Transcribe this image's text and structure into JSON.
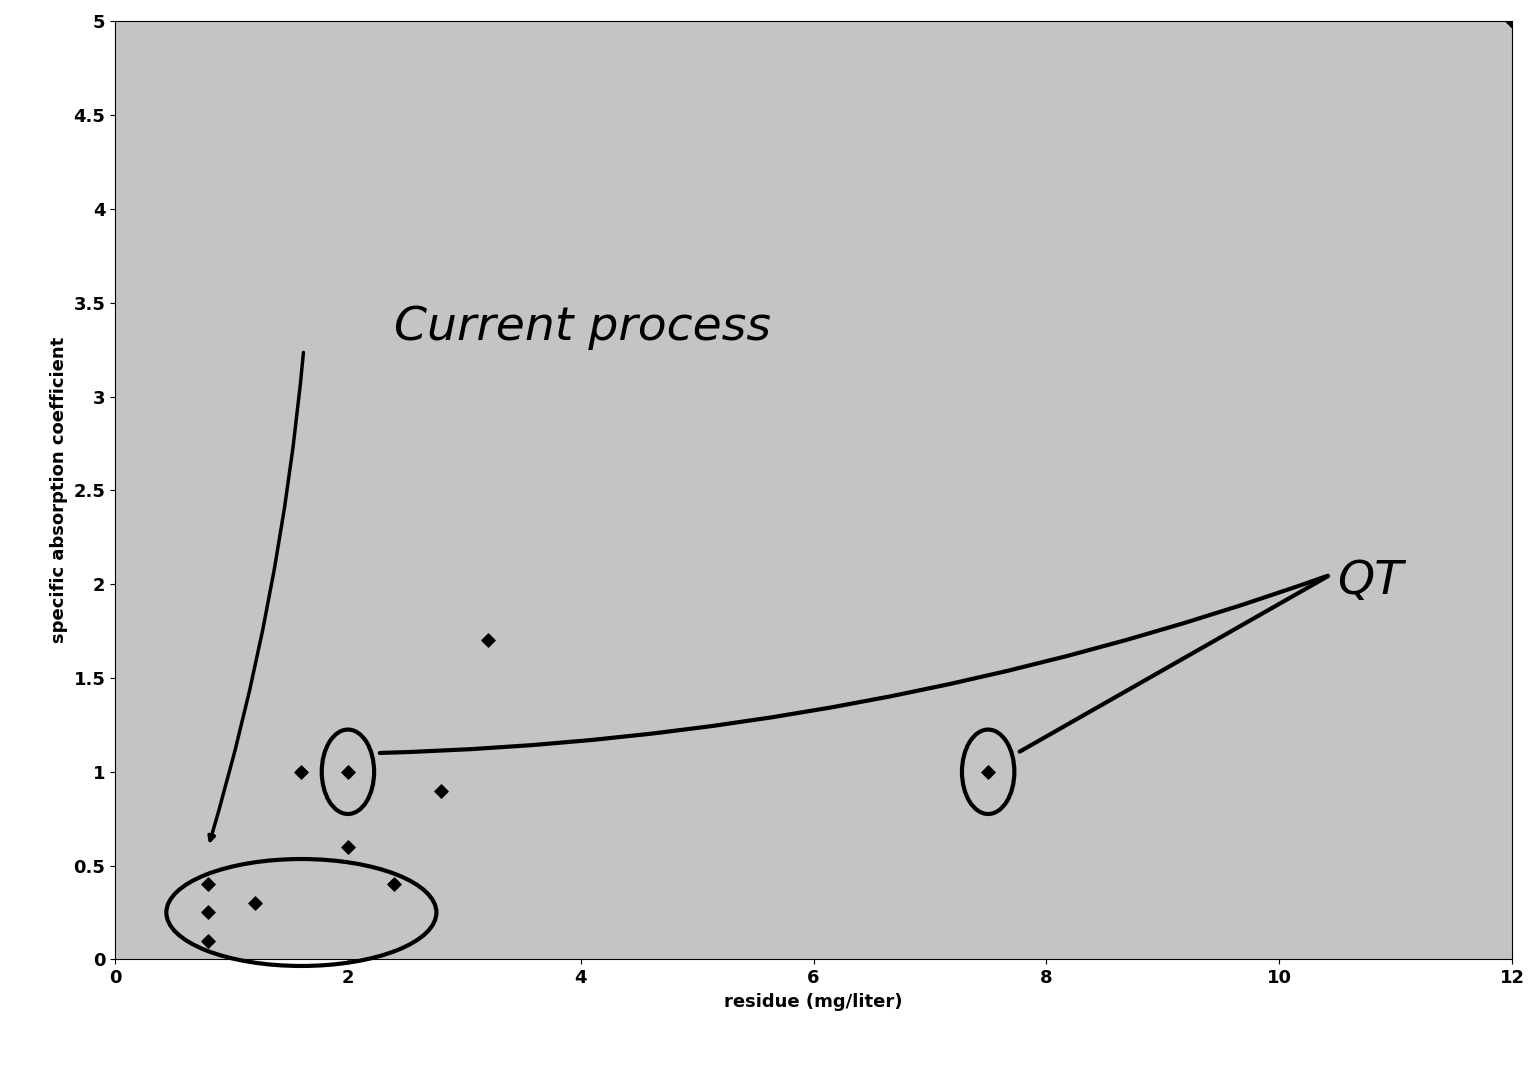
{
  "chart_data": {
    "type": "scatter",
    "x_label": "residue (mg/liter)",
    "y_label": "specific absorption coefficient",
    "x": [
      0.8,
      0.8,
      0.8,
      1.2,
      2.4,
      1.6,
      2.0,
      2.8,
      2.0,
      3.2,
      7.5,
      12
    ],
    "values": [
      0.4,
      0.25,
      0.1,
      0.3,
      0.4,
      1,
      1,
      0.9,
      0.6,
      1.7,
      1,
      5
    ],
    "color": "#000000",
    "marker": "D",
    "xlim": [
      0,
      12
    ],
    "xticks": [
      0,
      2,
      4,
      6,
      8,
      10,
      12
    ],
    "ylim": [
      0,
      5
    ],
    "yticks": [
      0,
      0.5,
      1,
      1.5,
      2,
      2.5,
      3,
      3.5,
      4,
      4.5,
      5
    ],
    "grid": false,
    "annotations": [
      {
        "text": "Current process"
      },
      {
        "text": "QT"
      }
    ]
  }
}
